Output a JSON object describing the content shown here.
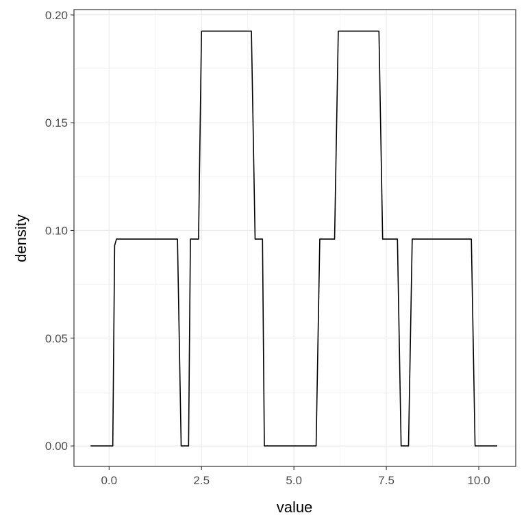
{
  "chart_data": {
    "type": "line",
    "title": "",
    "xlabel": "value",
    "ylabel": "density",
    "xlim": [
      -0.95,
      11.0
    ],
    "ylim": [
      -0.0095,
      0.2025
    ],
    "x_ticks": [
      0,
      2.5,
      5,
      7.5,
      10
    ],
    "x_tick_labels": [
      "0.0",
      "2.5",
      "5.0",
      "7.5",
      "10.0"
    ],
    "y_ticks": [
      0,
      0.05,
      0.1,
      0.15,
      0.2
    ],
    "y_tick_labels": [
      "0.00",
      "0.05",
      "0.10",
      "0.15",
      "0.20"
    ],
    "grid": true,
    "line_color": "#000000",
    "series": [
      {
        "x": [
          -0.5,
          0.1,
          0.15,
          0.2,
          1.85,
          1.95,
          2.15,
          2.2,
          2.42,
          2.5,
          3.85,
          3.95,
          4.15,
          4.2,
          5.6,
          5.7,
          6.1,
          6.2,
          7.3,
          7.4,
          7.8,
          7.9,
          8.1,
          8.2,
          9.8,
          9.9,
          10.5
        ],
        "y": [
          0,
          0,
          0.093,
          0.096,
          0.096,
          0,
          0,
          0.096,
          0.096,
          0.1925,
          0.1925,
          0.096,
          0.096,
          0,
          0,
          0.096,
          0.096,
          0.1925,
          0.1925,
          0.096,
          0.096,
          0,
          0,
          0.096,
          0.096,
          0,
          0
        ]
      }
    ]
  }
}
